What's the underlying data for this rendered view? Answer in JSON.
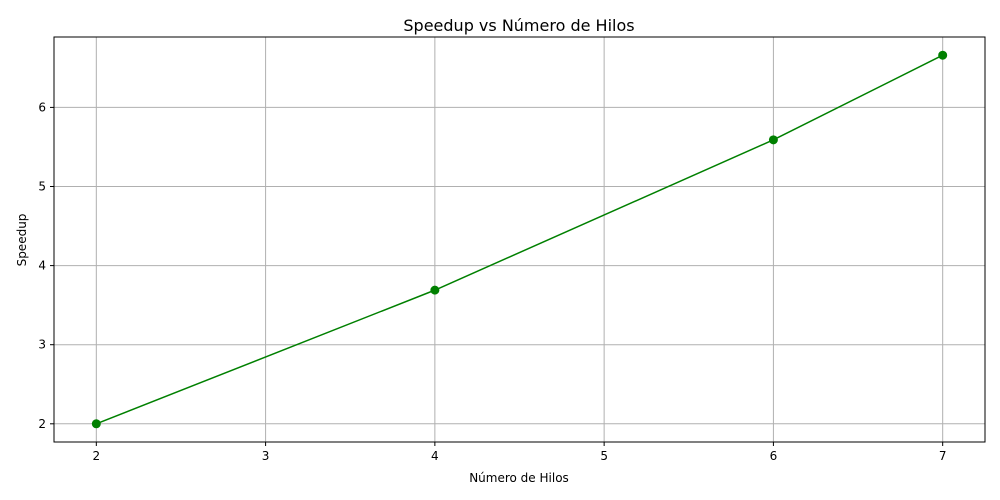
{
  "chart_data": {
    "type": "line",
    "title": "Speedup vs Número de Hilos",
    "xlabel": "Número de Hilos",
    "ylabel": "Speedup",
    "x": [
      2,
      4,
      6,
      7
    ],
    "series": [
      {
        "values": [
          2.0,
          3.69,
          5.59,
          6.66
        ],
        "color": "#008000",
        "marker": "circle"
      }
    ],
    "xlim": [
      1.75,
      7.25
    ],
    "ylim": [
      1.77,
      6.89
    ],
    "xticks": [
      2,
      3,
      4,
      5,
      6,
      7
    ],
    "yticks": [
      2,
      3,
      4,
      5,
      6
    ],
    "grid": true
  }
}
